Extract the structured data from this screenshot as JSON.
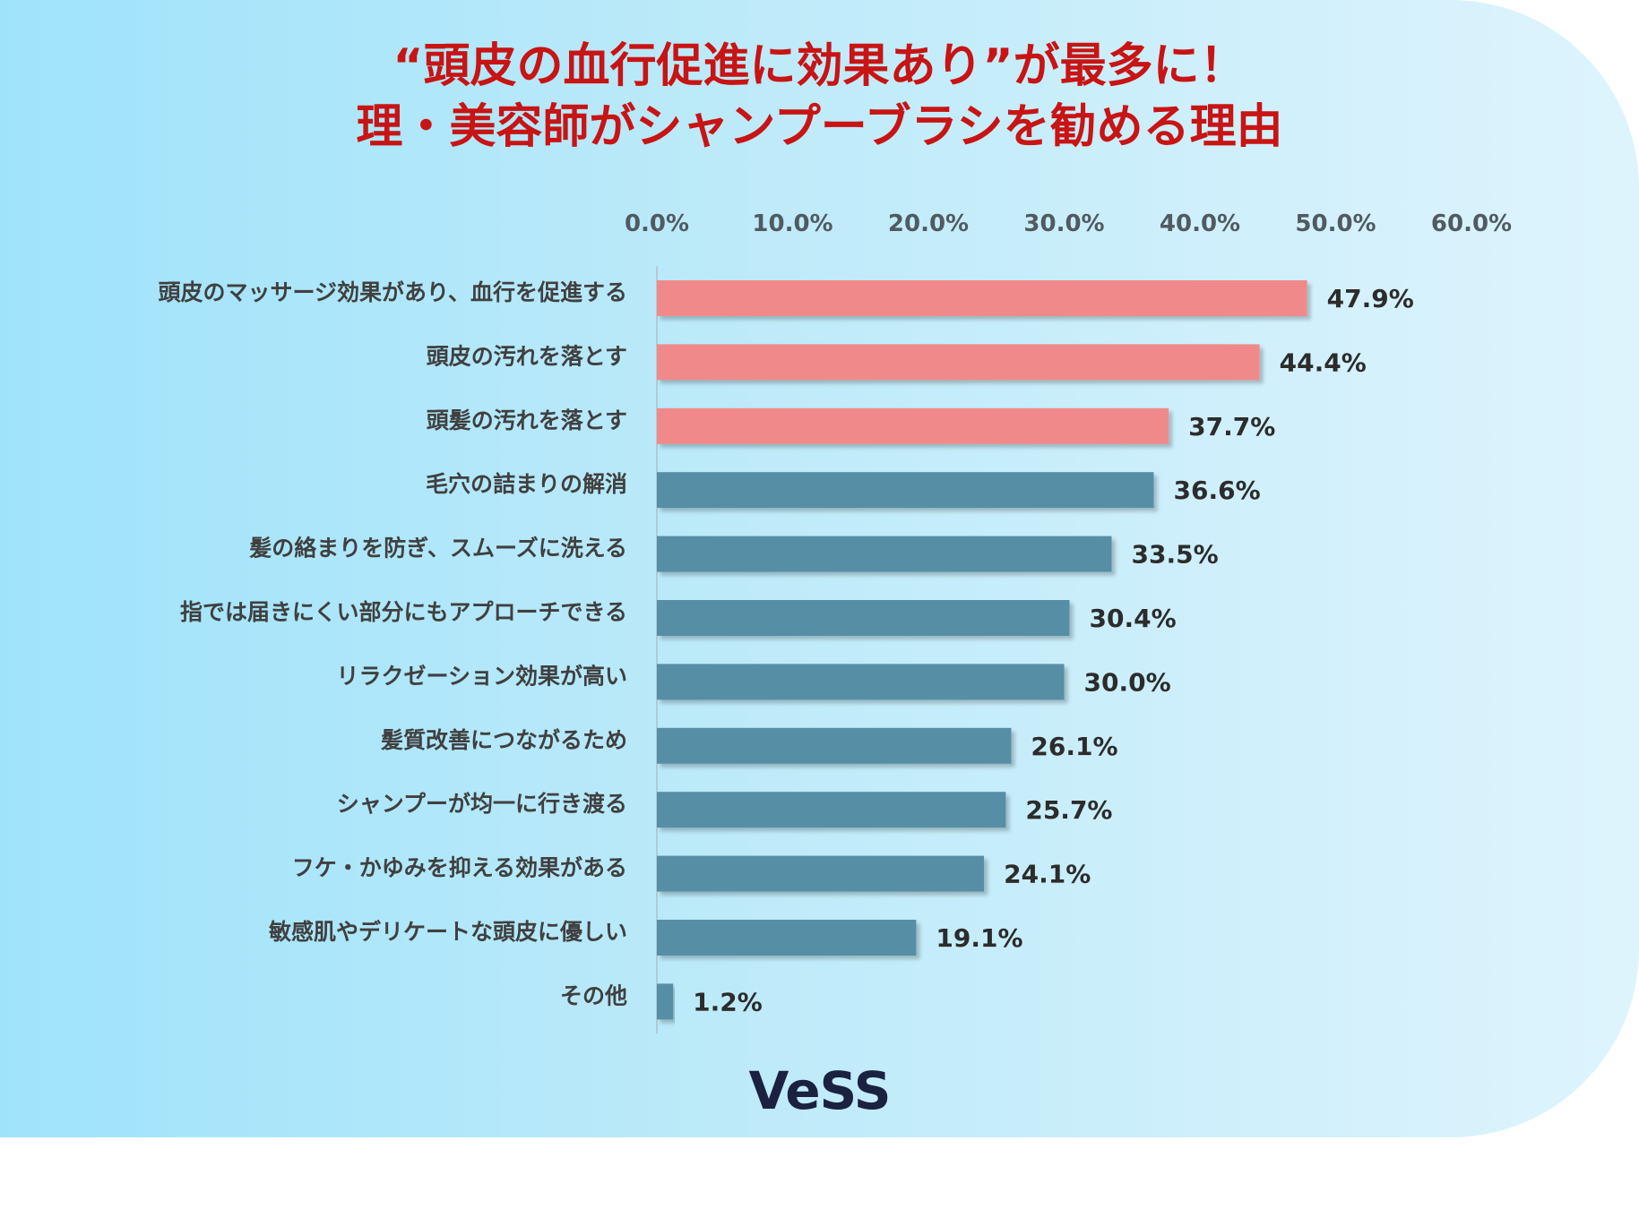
{
  "title_line1": "“頭皮の血行促進に効果あり”が最多に！",
  "title_line2": "理・美容師がシャンプーブラシを勧める理由",
  "logo_text": "VeSS",
  "colors": {
    "title": "#c81414",
    "highlight_bar": "#f08a8a",
    "default_bar": "#578ea6",
    "label_text": "#404040",
    "value_text": "#2c2c2c"
  },
  "chart_data": {
    "type": "bar",
    "orientation": "horizontal",
    "title": "“頭皮の血行促進に効果あり”が最多に！ 理・美容師がシャンプーブラシを勧める理由",
    "xlim": [
      0,
      60
    ],
    "x_ticks": [
      "0.0%",
      "10.0%",
      "20.0%",
      "30.0%",
      "40.0%",
      "50.0%",
      "60.0%"
    ],
    "x_tick_values": [
      0,
      10,
      20,
      30,
      40,
      50,
      60
    ],
    "x_axis_position": "top",
    "grid": false,
    "categories": [
      "頭皮のマッサージ効果があり、血行を促進する",
      "頭皮の汚れを落とす",
      "頭髪の汚れを落とす",
      "毛穴の詰まりの解消",
      "髪の絡まりを防ぎ、スムーズに洗える",
      "指では届きにくい部分にもアプローチできる",
      "リラクゼーション効果が高い",
      "髪質改善につながるため",
      "シャンプーが均一に行き渡る",
      "フケ・かゆみを抑える効果がある",
      "敏感肌やデリケートな頭皮に優しい",
      "その他"
    ],
    "values": [
      47.9,
      44.4,
      37.7,
      36.6,
      33.5,
      30.4,
      30.0,
      26.1,
      25.7,
      24.1,
      19.1,
      1.2
    ],
    "value_labels": [
      "47.9%",
      "44.4%",
      "37.7%",
      "36.6%",
      "33.5%",
      "30.4%",
      "30.0%",
      "26.1%",
      "25.7%",
      "24.1%",
      "19.1%",
      "1.2%"
    ],
    "highlighted": [
      true,
      true,
      true,
      false,
      false,
      false,
      false,
      false,
      false,
      false,
      false,
      false
    ]
  }
}
